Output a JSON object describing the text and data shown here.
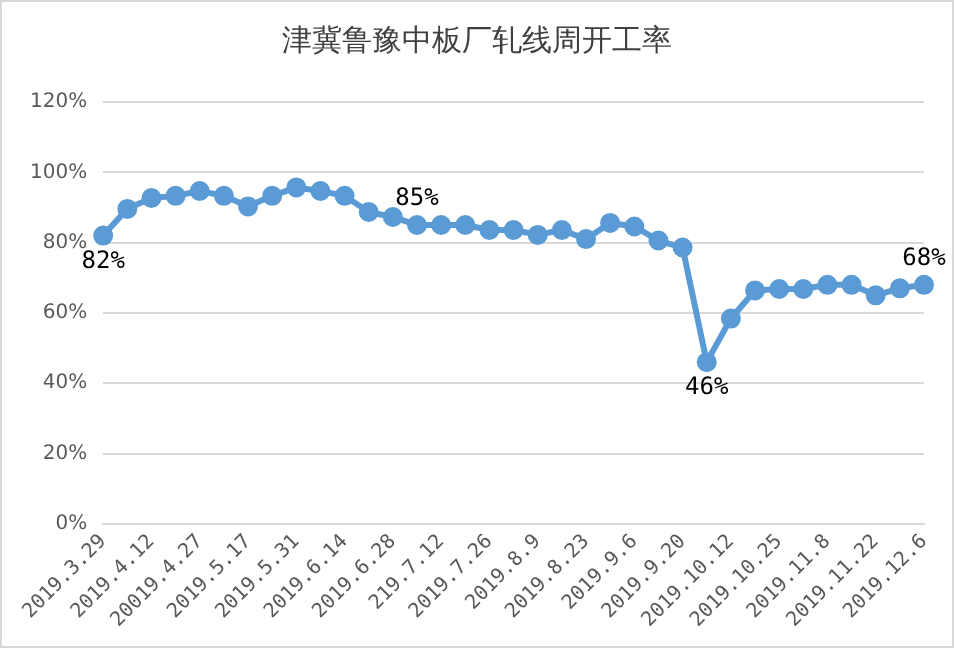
{
  "chart_data": {
    "type": "line",
    "title": "津冀鲁豫中板厂轧线周开工率",
    "categories": [
      "2019.3.29",
      null,
      "2019.4.12",
      null,
      "20019.4.27",
      null,
      "2019.5.17",
      null,
      "2019.5.31",
      null,
      "2019.6.14",
      null,
      "2019.6.28",
      null,
      "219.7.12",
      null,
      "2019.7.26",
      null,
      "2019.8.9",
      null,
      "2019.8.23",
      null,
      "2019.9.6",
      null,
      "2019.9.20",
      null,
      "2019.10.12",
      null,
      "2019.10.25",
      null,
      "2019.11.8",
      null,
      "2019.11.22",
      null,
      "2019.12.6"
    ],
    "series": [
      {
        "color": "#5b9bd5",
        "values": [
          82,
          89.6,
          92.7,
          93.3,
          94.7,
          93.3,
          90.3,
          93.3,
          95.7,
          94.7,
          93.3,
          88.7,
          87.3,
          85,
          85,
          85,
          83.6,
          83.6,
          82.2,
          83.6,
          81,
          85.6,
          84.6,
          80.6,
          78.6,
          46,
          58.4,
          66.4,
          66.8,
          66.8,
          68,
          68,
          65,
          67,
          68
        ],
        "value_labels": [
          "82%",
          null,
          null,
          null,
          null,
          null,
          null,
          null,
          null,
          null,
          null,
          null,
          null,
          "85%",
          null,
          null,
          null,
          null,
          null,
          null,
          null,
          null,
          null,
          null,
          null,
          "46%",
          null,
          null,
          null,
          null,
          null,
          null,
          null,
          null,
          "68%"
        ]
      }
    ],
    "ylim": [
      0,
      120
    ],
    "yticks": [
      {
        "value": 0,
        "label": "0%"
      },
      {
        "value": 20,
        "label": "20%"
      },
      {
        "value": 40,
        "label": "40%"
      },
      {
        "value": 60,
        "label": "60%"
      },
      {
        "value": 80,
        "label": "80%"
      },
      {
        "value": 100,
        "label": "100%"
      },
      {
        "value": 120,
        "label": "120%"
      }
    ],
    "grid": "y",
    "legend": false,
    "marker": "circle",
    "line_style": "solid"
  }
}
